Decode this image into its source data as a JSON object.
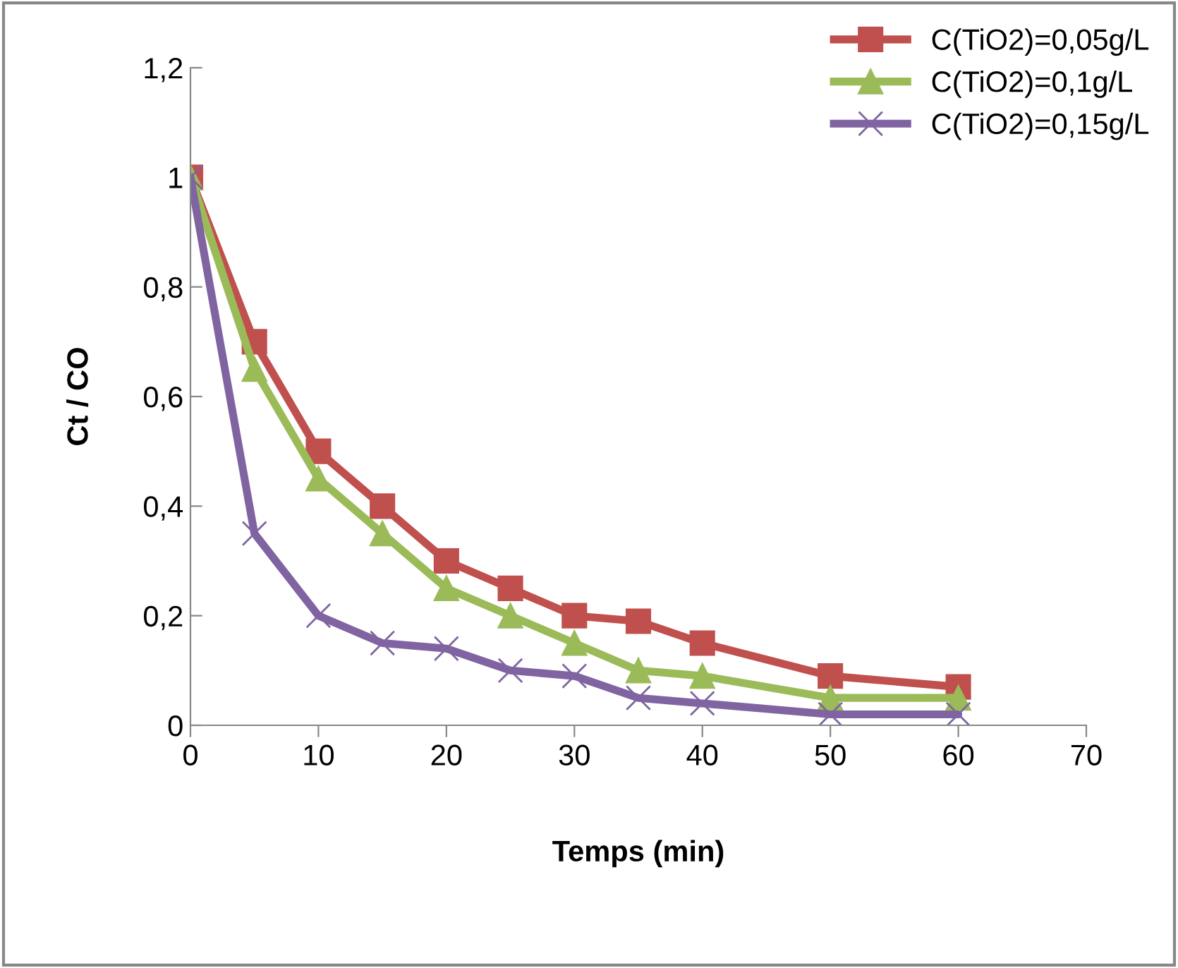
{
  "chart_data": {
    "type": "line",
    "xlabel": "Temps (min)",
    "ylabel": "Ct / CO",
    "x": [
      0,
      5,
      10,
      15,
      20,
      25,
      30,
      35,
      40,
      50,
      60
    ],
    "series": [
      {
        "name": "C(TiO2)=0,05g/L",
        "color": "#c0504d",
        "marker": "square",
        "values": [
          1,
          0.7,
          0.5,
          0.4,
          0.3,
          0.25,
          0.2,
          0.19,
          0.15,
          0.09,
          0.07
        ]
      },
      {
        "name": "C(TiO2)=0,1g/L",
        "color": "#9bbb59",
        "marker": "triangle",
        "values": [
          1,
          0.65,
          0.45,
          0.35,
          0.25,
          0.2,
          0.15,
          0.1,
          0.09,
          0.05,
          0.05
        ]
      },
      {
        "name": "C(TiO2)=0,15g/L",
        "color": "#8064a2",
        "marker": "cross",
        "values": [
          1,
          0.35,
          0.2,
          0.15,
          0.14,
          0.1,
          0.09,
          0.05,
          0.04,
          0.02,
          0.02
        ]
      }
    ],
    "xlim": [
      0,
      70
    ],
    "xticks": [
      0,
      10,
      20,
      30,
      40,
      50,
      60,
      70
    ],
    "ylim": [
      0,
      1.2
    ],
    "yticks": [
      0,
      {
        "value": 0.2,
        "label": "0,2"
      },
      {
        "value": 0.4,
        "label": "0,4"
      },
      {
        "value": 0.6,
        "label": "0,6"
      },
      {
        "value": 0.8,
        "label": "0,8"
      },
      1,
      {
        "value": 1.2,
        "label": "1,2"
      }
    ],
    "grid": false,
    "legend": "top right"
  }
}
